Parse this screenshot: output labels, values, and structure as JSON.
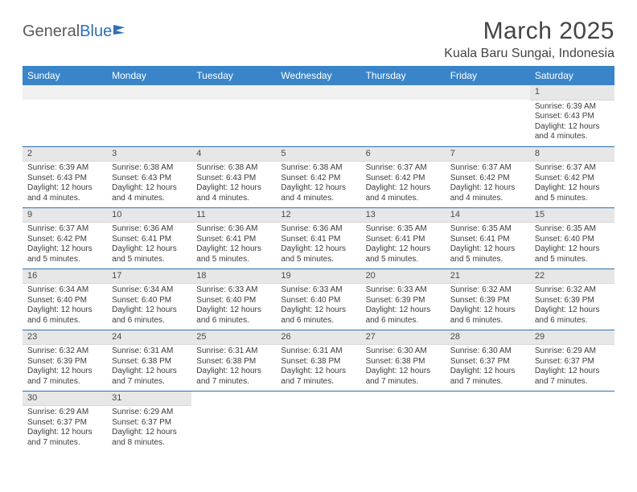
{
  "logo": {
    "name_gray": "General",
    "name_blue": "Blue"
  },
  "title": "March 2025",
  "location": "Kuala Baru Sungai, Indonesia",
  "colors": {
    "header_bg": "#3a85c9",
    "header_text": "#ffffff",
    "daynum_bg": "#e7e7e7",
    "cell_border": "#2d6fb5",
    "body_text": "#3c3c3c",
    "logo_gray": "#5a5a5a",
    "logo_blue": "#2d6fb5",
    "page_bg": "#ffffff"
  },
  "weekdays": [
    "Sunday",
    "Monday",
    "Tuesday",
    "Wednesday",
    "Thursday",
    "Friday",
    "Saturday"
  ],
  "weeks": [
    [
      null,
      null,
      null,
      null,
      null,
      null,
      {
        "n": "1",
        "sr": "Sunrise: 6:39 AM",
        "ss": "Sunset: 6:43 PM",
        "dl": "Daylight: 12 hours and 4 minutes."
      }
    ],
    [
      {
        "n": "2",
        "sr": "Sunrise: 6:39 AM",
        "ss": "Sunset: 6:43 PM",
        "dl": "Daylight: 12 hours and 4 minutes."
      },
      {
        "n": "3",
        "sr": "Sunrise: 6:38 AM",
        "ss": "Sunset: 6:43 PM",
        "dl": "Daylight: 12 hours and 4 minutes."
      },
      {
        "n": "4",
        "sr": "Sunrise: 6:38 AM",
        "ss": "Sunset: 6:43 PM",
        "dl": "Daylight: 12 hours and 4 minutes."
      },
      {
        "n": "5",
        "sr": "Sunrise: 6:38 AM",
        "ss": "Sunset: 6:42 PM",
        "dl": "Daylight: 12 hours and 4 minutes."
      },
      {
        "n": "6",
        "sr": "Sunrise: 6:37 AM",
        "ss": "Sunset: 6:42 PM",
        "dl": "Daylight: 12 hours and 4 minutes."
      },
      {
        "n": "7",
        "sr": "Sunrise: 6:37 AM",
        "ss": "Sunset: 6:42 PM",
        "dl": "Daylight: 12 hours and 4 minutes."
      },
      {
        "n": "8",
        "sr": "Sunrise: 6:37 AM",
        "ss": "Sunset: 6:42 PM",
        "dl": "Daylight: 12 hours and 5 minutes."
      }
    ],
    [
      {
        "n": "9",
        "sr": "Sunrise: 6:37 AM",
        "ss": "Sunset: 6:42 PM",
        "dl": "Daylight: 12 hours and 5 minutes."
      },
      {
        "n": "10",
        "sr": "Sunrise: 6:36 AM",
        "ss": "Sunset: 6:41 PM",
        "dl": "Daylight: 12 hours and 5 minutes."
      },
      {
        "n": "11",
        "sr": "Sunrise: 6:36 AM",
        "ss": "Sunset: 6:41 PM",
        "dl": "Daylight: 12 hours and 5 minutes."
      },
      {
        "n": "12",
        "sr": "Sunrise: 6:36 AM",
        "ss": "Sunset: 6:41 PM",
        "dl": "Daylight: 12 hours and 5 minutes."
      },
      {
        "n": "13",
        "sr": "Sunrise: 6:35 AM",
        "ss": "Sunset: 6:41 PM",
        "dl": "Daylight: 12 hours and 5 minutes."
      },
      {
        "n": "14",
        "sr": "Sunrise: 6:35 AM",
        "ss": "Sunset: 6:41 PM",
        "dl": "Daylight: 12 hours and 5 minutes."
      },
      {
        "n": "15",
        "sr": "Sunrise: 6:35 AM",
        "ss": "Sunset: 6:40 PM",
        "dl": "Daylight: 12 hours and 5 minutes."
      }
    ],
    [
      {
        "n": "16",
        "sr": "Sunrise: 6:34 AM",
        "ss": "Sunset: 6:40 PM",
        "dl": "Daylight: 12 hours and 6 minutes."
      },
      {
        "n": "17",
        "sr": "Sunrise: 6:34 AM",
        "ss": "Sunset: 6:40 PM",
        "dl": "Daylight: 12 hours and 6 minutes."
      },
      {
        "n": "18",
        "sr": "Sunrise: 6:33 AM",
        "ss": "Sunset: 6:40 PM",
        "dl": "Daylight: 12 hours and 6 minutes."
      },
      {
        "n": "19",
        "sr": "Sunrise: 6:33 AM",
        "ss": "Sunset: 6:40 PM",
        "dl": "Daylight: 12 hours and 6 minutes."
      },
      {
        "n": "20",
        "sr": "Sunrise: 6:33 AM",
        "ss": "Sunset: 6:39 PM",
        "dl": "Daylight: 12 hours and 6 minutes."
      },
      {
        "n": "21",
        "sr": "Sunrise: 6:32 AM",
        "ss": "Sunset: 6:39 PM",
        "dl": "Daylight: 12 hours and 6 minutes."
      },
      {
        "n": "22",
        "sr": "Sunrise: 6:32 AM",
        "ss": "Sunset: 6:39 PM",
        "dl": "Daylight: 12 hours and 6 minutes."
      }
    ],
    [
      {
        "n": "23",
        "sr": "Sunrise: 6:32 AM",
        "ss": "Sunset: 6:39 PM",
        "dl": "Daylight: 12 hours and 7 minutes."
      },
      {
        "n": "24",
        "sr": "Sunrise: 6:31 AM",
        "ss": "Sunset: 6:38 PM",
        "dl": "Daylight: 12 hours and 7 minutes."
      },
      {
        "n": "25",
        "sr": "Sunrise: 6:31 AM",
        "ss": "Sunset: 6:38 PM",
        "dl": "Daylight: 12 hours and 7 minutes."
      },
      {
        "n": "26",
        "sr": "Sunrise: 6:31 AM",
        "ss": "Sunset: 6:38 PM",
        "dl": "Daylight: 12 hours and 7 minutes."
      },
      {
        "n": "27",
        "sr": "Sunrise: 6:30 AM",
        "ss": "Sunset: 6:38 PM",
        "dl": "Daylight: 12 hours and 7 minutes."
      },
      {
        "n": "28",
        "sr": "Sunrise: 6:30 AM",
        "ss": "Sunset: 6:37 PM",
        "dl": "Daylight: 12 hours and 7 minutes."
      },
      {
        "n": "29",
        "sr": "Sunrise: 6:29 AM",
        "ss": "Sunset: 6:37 PM",
        "dl": "Daylight: 12 hours and 7 minutes."
      }
    ],
    [
      {
        "n": "30",
        "sr": "Sunrise: 6:29 AM",
        "ss": "Sunset: 6:37 PM",
        "dl": "Daylight: 12 hours and 7 minutes."
      },
      {
        "n": "31",
        "sr": "Sunrise: 6:29 AM",
        "ss": "Sunset: 6:37 PM",
        "dl": "Daylight: 12 hours and 8 minutes."
      },
      null,
      null,
      null,
      null,
      null
    ]
  ]
}
